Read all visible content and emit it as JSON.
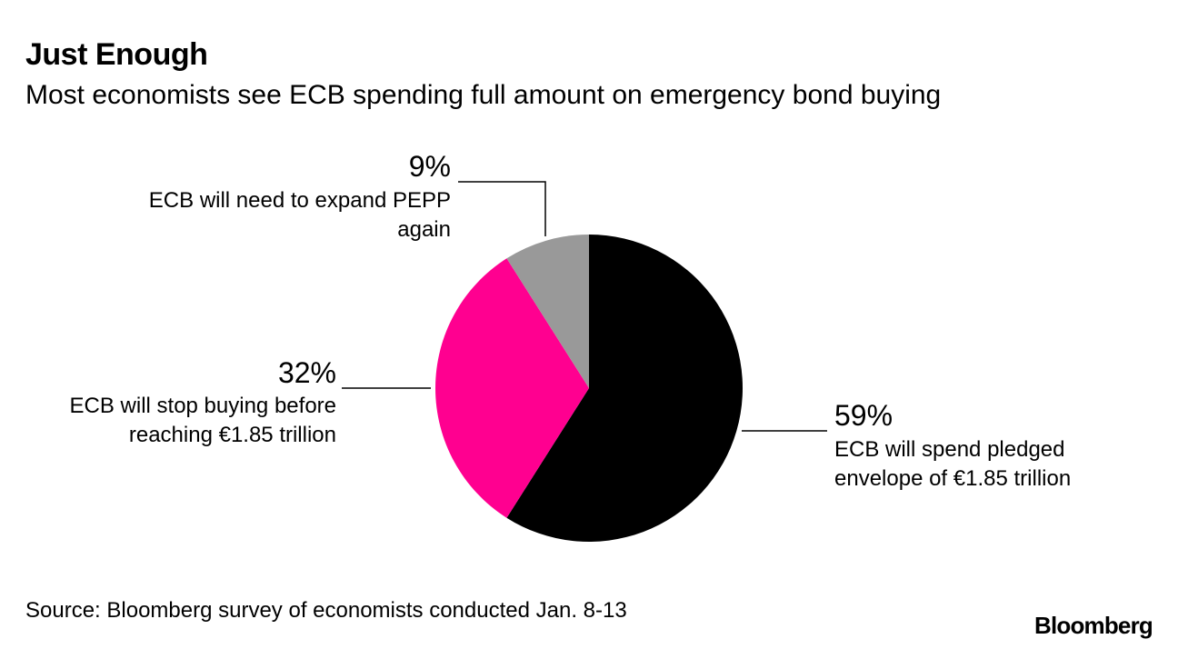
{
  "header": {
    "title": "Just Enough",
    "subtitle": "Most economists see ECB spending full amount on emergency bond buying"
  },
  "footer": {
    "source": "Source: Bloomberg survey of economists conducted Jan. 8-13",
    "brand": "Bloomberg"
  },
  "chart_data": {
    "type": "pie",
    "title": "Just Enough",
    "subtitle": "Most economists see ECB spending full amount on emergency bond buying",
    "slices": [
      {
        "value": 59,
        "value_label": "59%",
        "label_lines": [
          "ECB will spend pledged",
          "envelope of €1.85 trillion"
        ],
        "color": "#000000"
      },
      {
        "value": 32,
        "value_label": "32%",
        "label_lines": [
          "ECB will stop buying before",
          "reaching €1.85 trillion"
        ],
        "color": "#ff0090"
      },
      {
        "value": 9,
        "value_label": "9%",
        "label_lines": [
          "ECB will need to expand PEPP",
          "again"
        ],
        "color": "#999999"
      }
    ],
    "start_angle": "12 o'clock",
    "direction": "clockwise",
    "legend": "none"
  }
}
